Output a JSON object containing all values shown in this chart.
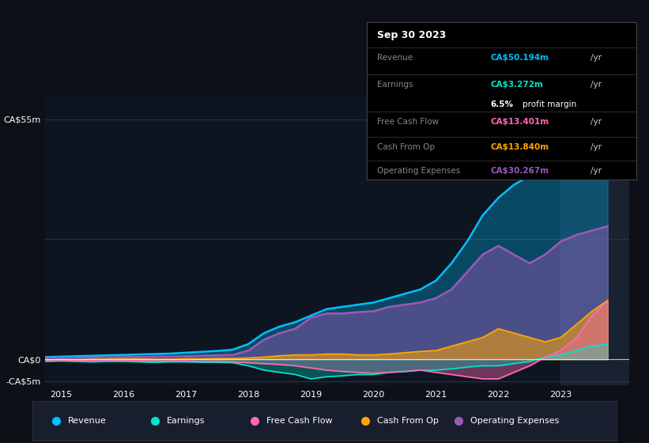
{
  "bg_color": "#0d1117",
  "chart_bg": "#0d1520",
  "grid_color": "#2a3a4a",
  "x_years": [
    2014.75,
    2015.0,
    2015.25,
    2015.5,
    2015.75,
    2016.0,
    2016.25,
    2016.5,
    2016.75,
    2017.0,
    2017.25,
    2017.5,
    2017.75,
    2018.0,
    2018.25,
    2018.5,
    2018.75,
    2019.0,
    2019.25,
    2019.5,
    2019.75,
    2020.0,
    2020.25,
    2020.5,
    2020.75,
    2021.0,
    2021.25,
    2021.5,
    2021.75,
    2022.0,
    2022.25,
    2022.5,
    2022.75,
    2023.0,
    2023.25,
    2023.5,
    2023.75
  ],
  "revenue": [
    0.5,
    0.6,
    0.7,
    0.8,
    0.9,
    1.0,
    1.1,
    1.2,
    1.3,
    1.5,
    1.7,
    1.9,
    2.2,
    3.5,
    6.0,
    7.5,
    8.5,
    10.0,
    11.5,
    12.0,
    12.5,
    13.0,
    14.0,
    15.0,
    16.0,
    18.0,
    22.0,
    27.0,
    33.0,
    37.0,
    40.0,
    42.0,
    44.0,
    46.0,
    48.0,
    50.0,
    51.0
  ],
  "earnings": [
    -0.5,
    -0.4,
    -0.5,
    -0.6,
    -0.5,
    -0.5,
    -0.6,
    -0.7,
    -0.6,
    -0.6,
    -0.7,
    -0.7,
    -0.8,
    -1.5,
    -2.5,
    -3.0,
    -3.5,
    -4.5,
    -4.0,
    -3.8,
    -3.5,
    -3.5,
    -3.0,
    -2.8,
    -2.5,
    -2.5,
    -2.2,
    -1.8,
    -1.5,
    -1.5,
    -1.0,
    -0.5,
    0.5,
    1.0,
    2.0,
    3.0,
    3.5
  ],
  "free_cash_flow": [
    -0.3,
    -0.2,
    -0.3,
    -0.3,
    -0.2,
    -0.2,
    -0.3,
    -0.4,
    -0.4,
    -0.4,
    -0.5,
    -0.5,
    -0.6,
    -0.8,
    -1.0,
    -1.2,
    -1.5,
    -2.0,
    -2.5,
    -2.8,
    -3.0,
    -3.2,
    -3.0,
    -2.8,
    -2.5,
    -3.0,
    -3.5,
    -4.0,
    -4.5,
    -4.5,
    -3.0,
    -1.5,
    0.5,
    2.0,
    5.0,
    10.0,
    13.5
  ],
  "cash_from_op": [
    -0.1,
    0.0,
    -0.1,
    0.0,
    0.0,
    0.1,
    0.1,
    0.0,
    0.0,
    0.1,
    0.1,
    0.2,
    0.2,
    0.3,
    0.5,
    0.8,
    1.0,
    1.0,
    1.2,
    1.2,
    1.0,
    1.0,
    1.2,
    1.5,
    1.8,
    2.0,
    3.0,
    4.0,
    5.0,
    7.0,
    6.0,
    5.0,
    4.0,
    5.0,
    8.0,
    11.0,
    13.5
  ],
  "operating_expenses": [
    0.2,
    0.3,
    0.3,
    0.4,
    0.4,
    0.5,
    0.5,
    0.6,
    0.6,
    0.7,
    0.8,
    0.9,
    1.0,
    2.0,
    4.5,
    6.0,
    7.0,
    9.5,
    10.5,
    10.5,
    10.8,
    11.0,
    12.0,
    12.5,
    13.0,
    14.0,
    16.0,
    20.0,
    24.0,
    26.0,
    24.0,
    22.0,
    24.0,
    27.0,
    28.5,
    29.5,
    30.5
  ],
  "revenue_color": "#00bfff",
  "earnings_color": "#00e5cc",
  "free_cash_flow_color": "#ff69b4",
  "cash_from_op_color": "#ffa500",
  "operating_expenses_color": "#9b59b6",
  "highlight_x_start": 2023.0,
  "ylim": [
    -6,
    60
  ],
  "xlim_start": 2014.75,
  "xlim_end": 2024.1,
  "tooltip_date": "Sep 30 2023",
  "tooltip_revenue_label": "Revenue",
  "tooltip_revenue_value": "CA$50.194m",
  "tooltip_earnings_label": "Earnings",
  "tooltip_earnings_value": "CA$3.272m",
  "tooltip_margin": "6.5%",
  "tooltip_fcf_label": "Free Cash Flow",
  "tooltip_fcf_value": "CA$13.401m",
  "tooltip_cfop_label": "Cash From Op",
  "tooltip_cfop_value": "CA$13.840m",
  "tooltip_opex_label": "Operating Expenses",
  "tooltip_opex_value": "CA$30.267m",
  "legend_labels": [
    "Revenue",
    "Earnings",
    "Free Cash Flow",
    "Cash From Op",
    "Operating Expenses"
  ],
  "legend_colors": [
    "#00bfff",
    "#00e5cc",
    "#ff69b4",
    "#ffa500",
    "#9b59b6"
  ]
}
